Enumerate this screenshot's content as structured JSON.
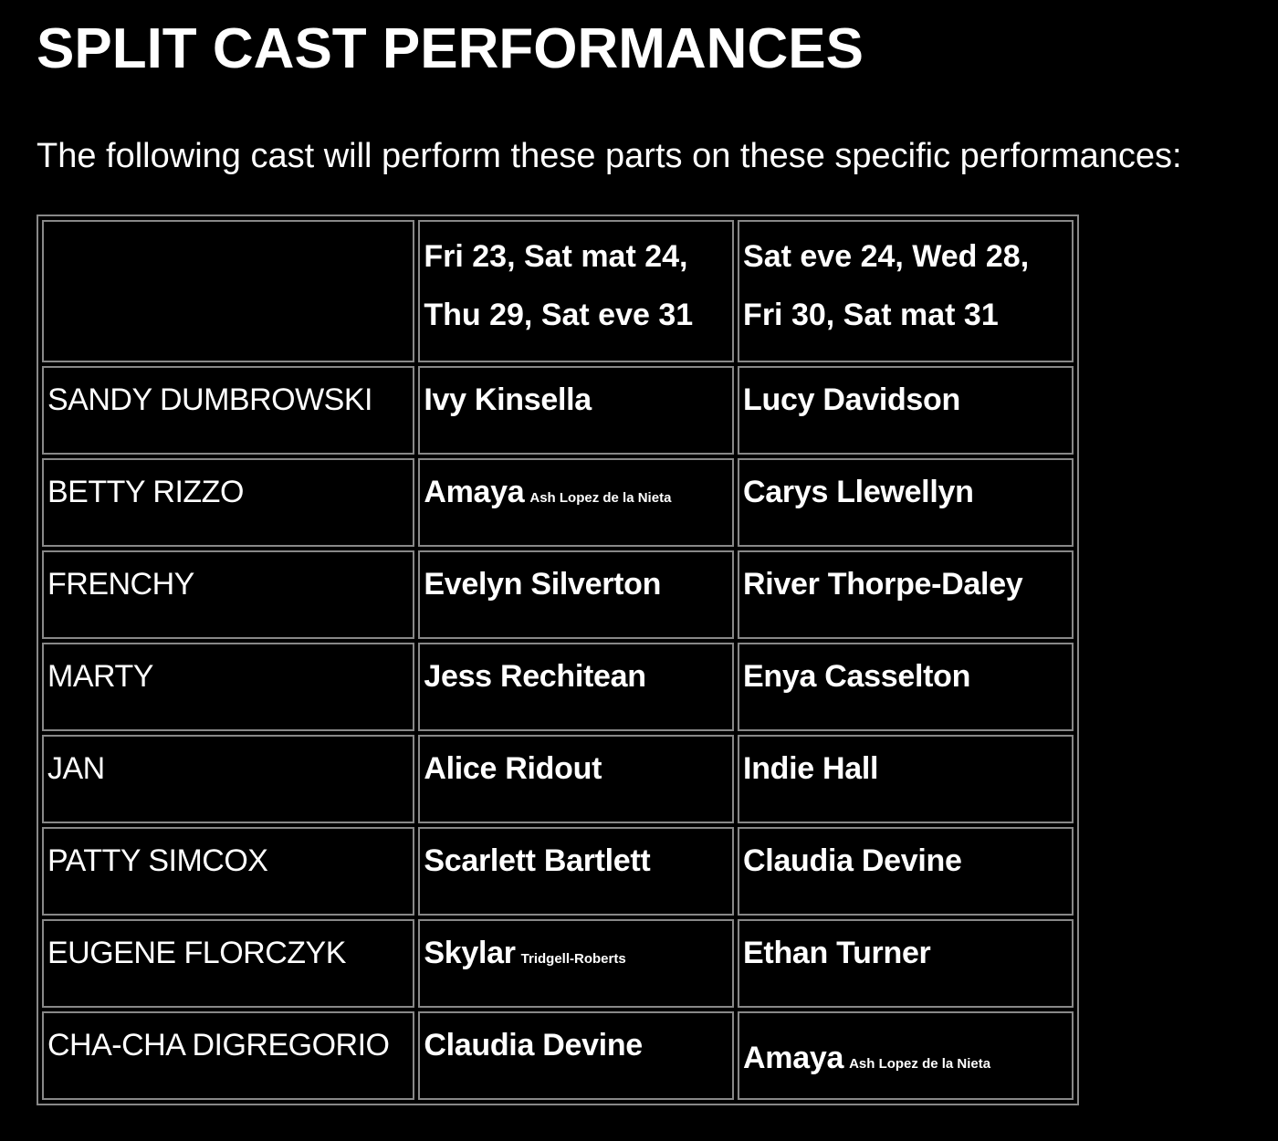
{
  "title": "SPLIT CAST PERFORMANCES",
  "intro": "The following cast will perform these parts on these specific performances:",
  "table": {
    "headers": [
      "",
      {
        "line1": "Fri 23, Sat mat 24,",
        "line2": "Thu 29, Sat eve 31"
      },
      {
        "line1": "Sat eve 24, Wed 28,",
        "line2": "Fri 30, Sat mat 31"
      }
    ],
    "rows": [
      {
        "role": "SANDY DUMBROWSKI",
        "a": {
          "name": "Ivy Kinsella",
          "sub": ""
        },
        "b": {
          "name": "Lucy Davidson",
          "sub": ""
        }
      },
      {
        "role": "BETTY RIZZO",
        "a": {
          "name": "Amaya",
          "sub": "Ash Lopez de la Nieta"
        },
        "b": {
          "name": "Carys Llewellyn",
          "sub": ""
        }
      },
      {
        "role": "FRENCHY",
        "a": {
          "name": "Evelyn Silverton",
          "sub": ""
        },
        "b": {
          "name": "River Thorpe-Daley",
          "sub": ""
        }
      },
      {
        "role": "MARTY",
        "a": {
          "name": "Jess Rechitean",
          "sub": ""
        },
        "b": {
          "name": "Enya Casselton",
          "sub": ""
        }
      },
      {
        "role": "JAN",
        "a": {
          "name": "Alice Ridout",
          "sub": ""
        },
        "b": {
          "name": "Indie Hall",
          "sub": ""
        }
      },
      {
        "role": "PATTY SIMCOX",
        "a": {
          "name": "Scarlett Bartlett",
          "sub": ""
        },
        "b": {
          "name": "Claudia Devine",
          "sub": ""
        }
      },
      {
        "role": "EUGENE FLORCZYK",
        "a": {
          "name": "Skylar",
          "sub": "Tridgell-Roberts"
        },
        "b": {
          "name": "Ethan Turner",
          "sub": ""
        }
      },
      {
        "role": "CHA-CHA DIGREGORIO",
        "a": {
          "name": "Claudia Devine",
          "sub": ""
        },
        "b": {
          "name": "Amaya",
          "sub": "Ash Lopez de la Nieta"
        }
      }
    ]
  }
}
